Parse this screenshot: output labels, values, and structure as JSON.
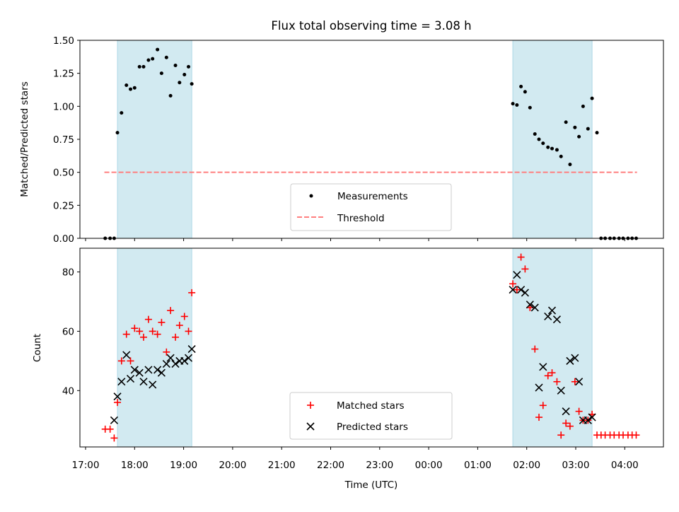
{
  "title": "Flux total observing time = 3.08 h",
  "colors": {
    "shade": "#add8e6",
    "measurement": "#000000",
    "threshold": "#ff7f7f",
    "matched": "#ff0000",
    "predicted": "#000000"
  },
  "chart_data": [
    {
      "type": "scatter",
      "ylabel": "Matched/Predicted stars",
      "ylim": [
        0,
        1.5
      ],
      "y_ticks": [
        0.0,
        0.25,
        0.5,
        0.75,
        1.0,
        1.25,
        1.5
      ],
      "y_tick_labels": [
        "0.00",
        "0.25",
        "0.50",
        "0.75",
        "1.00",
        "1.25",
        "1.50"
      ],
      "xlim": [
        "17:00",
        "04:43"
      ],
      "shaded_intervals": [
        [
          "17:39",
          "19:10"
        ],
        [
          "01:43",
          "03:20"
        ]
      ],
      "legend_position": "lower center",
      "legend": {
        "measurements": "Measurements",
        "threshold": "Threshold"
      },
      "threshold": {
        "value": 0.5,
        "x": [
          "17:23",
          "04:15"
        ]
      },
      "series": [
        {
          "name": "Measurements",
          "x": [
            "17:24",
            "17:30",
            "17:35",
            "17:39",
            "17:44",
            "17:50",
            "17:55",
            "18:00",
            "18:06",
            "18:11",
            "18:17",
            "18:22",
            "18:28",
            "18:33",
            "18:39",
            "18:44",
            "18:50",
            "18:55",
            "19:01",
            "19:06",
            "19:10",
            "01:43",
            "01:48",
            "01:53",
            "01:58",
            "02:04",
            "02:10",
            "02:15",
            "02:20",
            "02:26",
            "02:31",
            "02:37",
            "02:42",
            "02:48",
            "02:53",
            "02:59",
            "03:04",
            "03:09",
            "03:15",
            "03:20",
            "03:26",
            "03:31",
            "03:36",
            "03:42",
            "03:47",
            "03:53",
            "03:58",
            "04:04",
            "04:09",
            "04:14"
          ],
          "y": [
            0.0,
            0.0,
            0.0,
            0.8,
            0.95,
            1.16,
            1.13,
            1.14,
            1.3,
            1.3,
            1.35,
            1.36,
            1.43,
            1.25,
            1.37,
            1.08,
            1.31,
            1.18,
            1.24,
            1.3,
            1.17,
            1.02,
            1.01,
            1.15,
            1.11,
            0.99,
            0.79,
            0.75,
            0.72,
            0.69,
            0.68,
            0.67,
            0.62,
            0.88,
            0.56,
            0.84,
            0.77,
            1.0,
            0.83,
            1.06,
            0.8,
            0.0,
            0.0,
            0.0,
            0.0,
            0.0,
            0.0,
            0.0,
            0.0,
            0.0
          ]
        }
      ]
    },
    {
      "type": "scatter",
      "xlabel": "Time (UTC)",
      "ylabel": "Count",
      "ylim": [
        21,
        88
      ],
      "y_ticks": [
        40,
        60,
        80
      ],
      "x_ticks": [
        "17:00",
        "18:00",
        "19:00",
        "20:00",
        "21:00",
        "22:00",
        "23:00",
        "00:00",
        "01:00",
        "02:00",
        "03:00",
        "04:00"
      ],
      "xlim": [
        "17:00",
        "04:43"
      ],
      "shaded_intervals": [
        [
          "17:39",
          "19:10"
        ],
        [
          "01:43",
          "03:20"
        ]
      ],
      "legend_position": "lower center",
      "series": [
        {
          "name": "Matched stars",
          "x": [
            "17:24",
            "17:30",
            "17:35",
            "17:39",
            "17:44",
            "17:50",
            "17:55",
            "18:00",
            "18:06",
            "18:11",
            "18:17",
            "18:22",
            "18:28",
            "18:33",
            "18:39",
            "18:44",
            "18:50",
            "18:55",
            "19:01",
            "19:06",
            "19:10",
            "01:43",
            "01:48",
            "01:53",
            "01:58",
            "02:04",
            "02:10",
            "02:15",
            "02:20",
            "02:26",
            "02:31",
            "02:37",
            "02:42",
            "02:48",
            "02:53",
            "02:59",
            "03:04",
            "03:09",
            "03:15",
            "03:20",
            "03:26",
            "03:31",
            "03:36",
            "03:42",
            "03:47",
            "03:53",
            "03:58",
            "04:04",
            "04:09",
            "04:14"
          ],
          "y": [
            27,
            27,
            24,
            36,
            50,
            59,
            50,
            61,
            60,
            58,
            64,
            60,
            59,
            63,
            53,
            67,
            58,
            62,
            65,
            60,
            73,
            76,
            74,
            85,
            81,
            68,
            54,
            31,
            35,
            45,
            46,
            43,
            25,
            29,
            28,
            43,
            33,
            30,
            30,
            32,
            25,
            25,
            25,
            25,
            25,
            25,
            25,
            25,
            25,
            25
          ]
        },
        {
          "name": "Predicted stars",
          "x": [
            "17:35",
            "17:39",
            "17:44",
            "17:50",
            "17:55",
            "18:00",
            "18:06",
            "18:11",
            "18:17",
            "18:22",
            "18:28",
            "18:33",
            "18:39",
            "18:44",
            "18:50",
            "18:55",
            "19:01",
            "19:06",
            "19:10",
            "01:43",
            "01:48",
            "01:53",
            "01:58",
            "02:04",
            "02:10",
            "02:15",
            "02:20",
            "02:26",
            "02:31",
            "02:37",
            "02:42",
            "02:48",
            "02:53",
            "02:59",
            "03:04",
            "03:09",
            "03:15",
            "03:20"
          ],
          "y": [
            30,
            38,
            43,
            52,
            44,
            47,
            46,
            43,
            47,
            42,
            47,
            46,
            49,
            51,
            49,
            50,
            50,
            51,
            54,
            74,
            79,
            74,
            73,
            69,
            68,
            41,
            48,
            65,
            67,
            64,
            40,
            33,
            50,
            51,
            43,
            30,
            30,
            31
          ]
        }
      ]
    }
  ]
}
